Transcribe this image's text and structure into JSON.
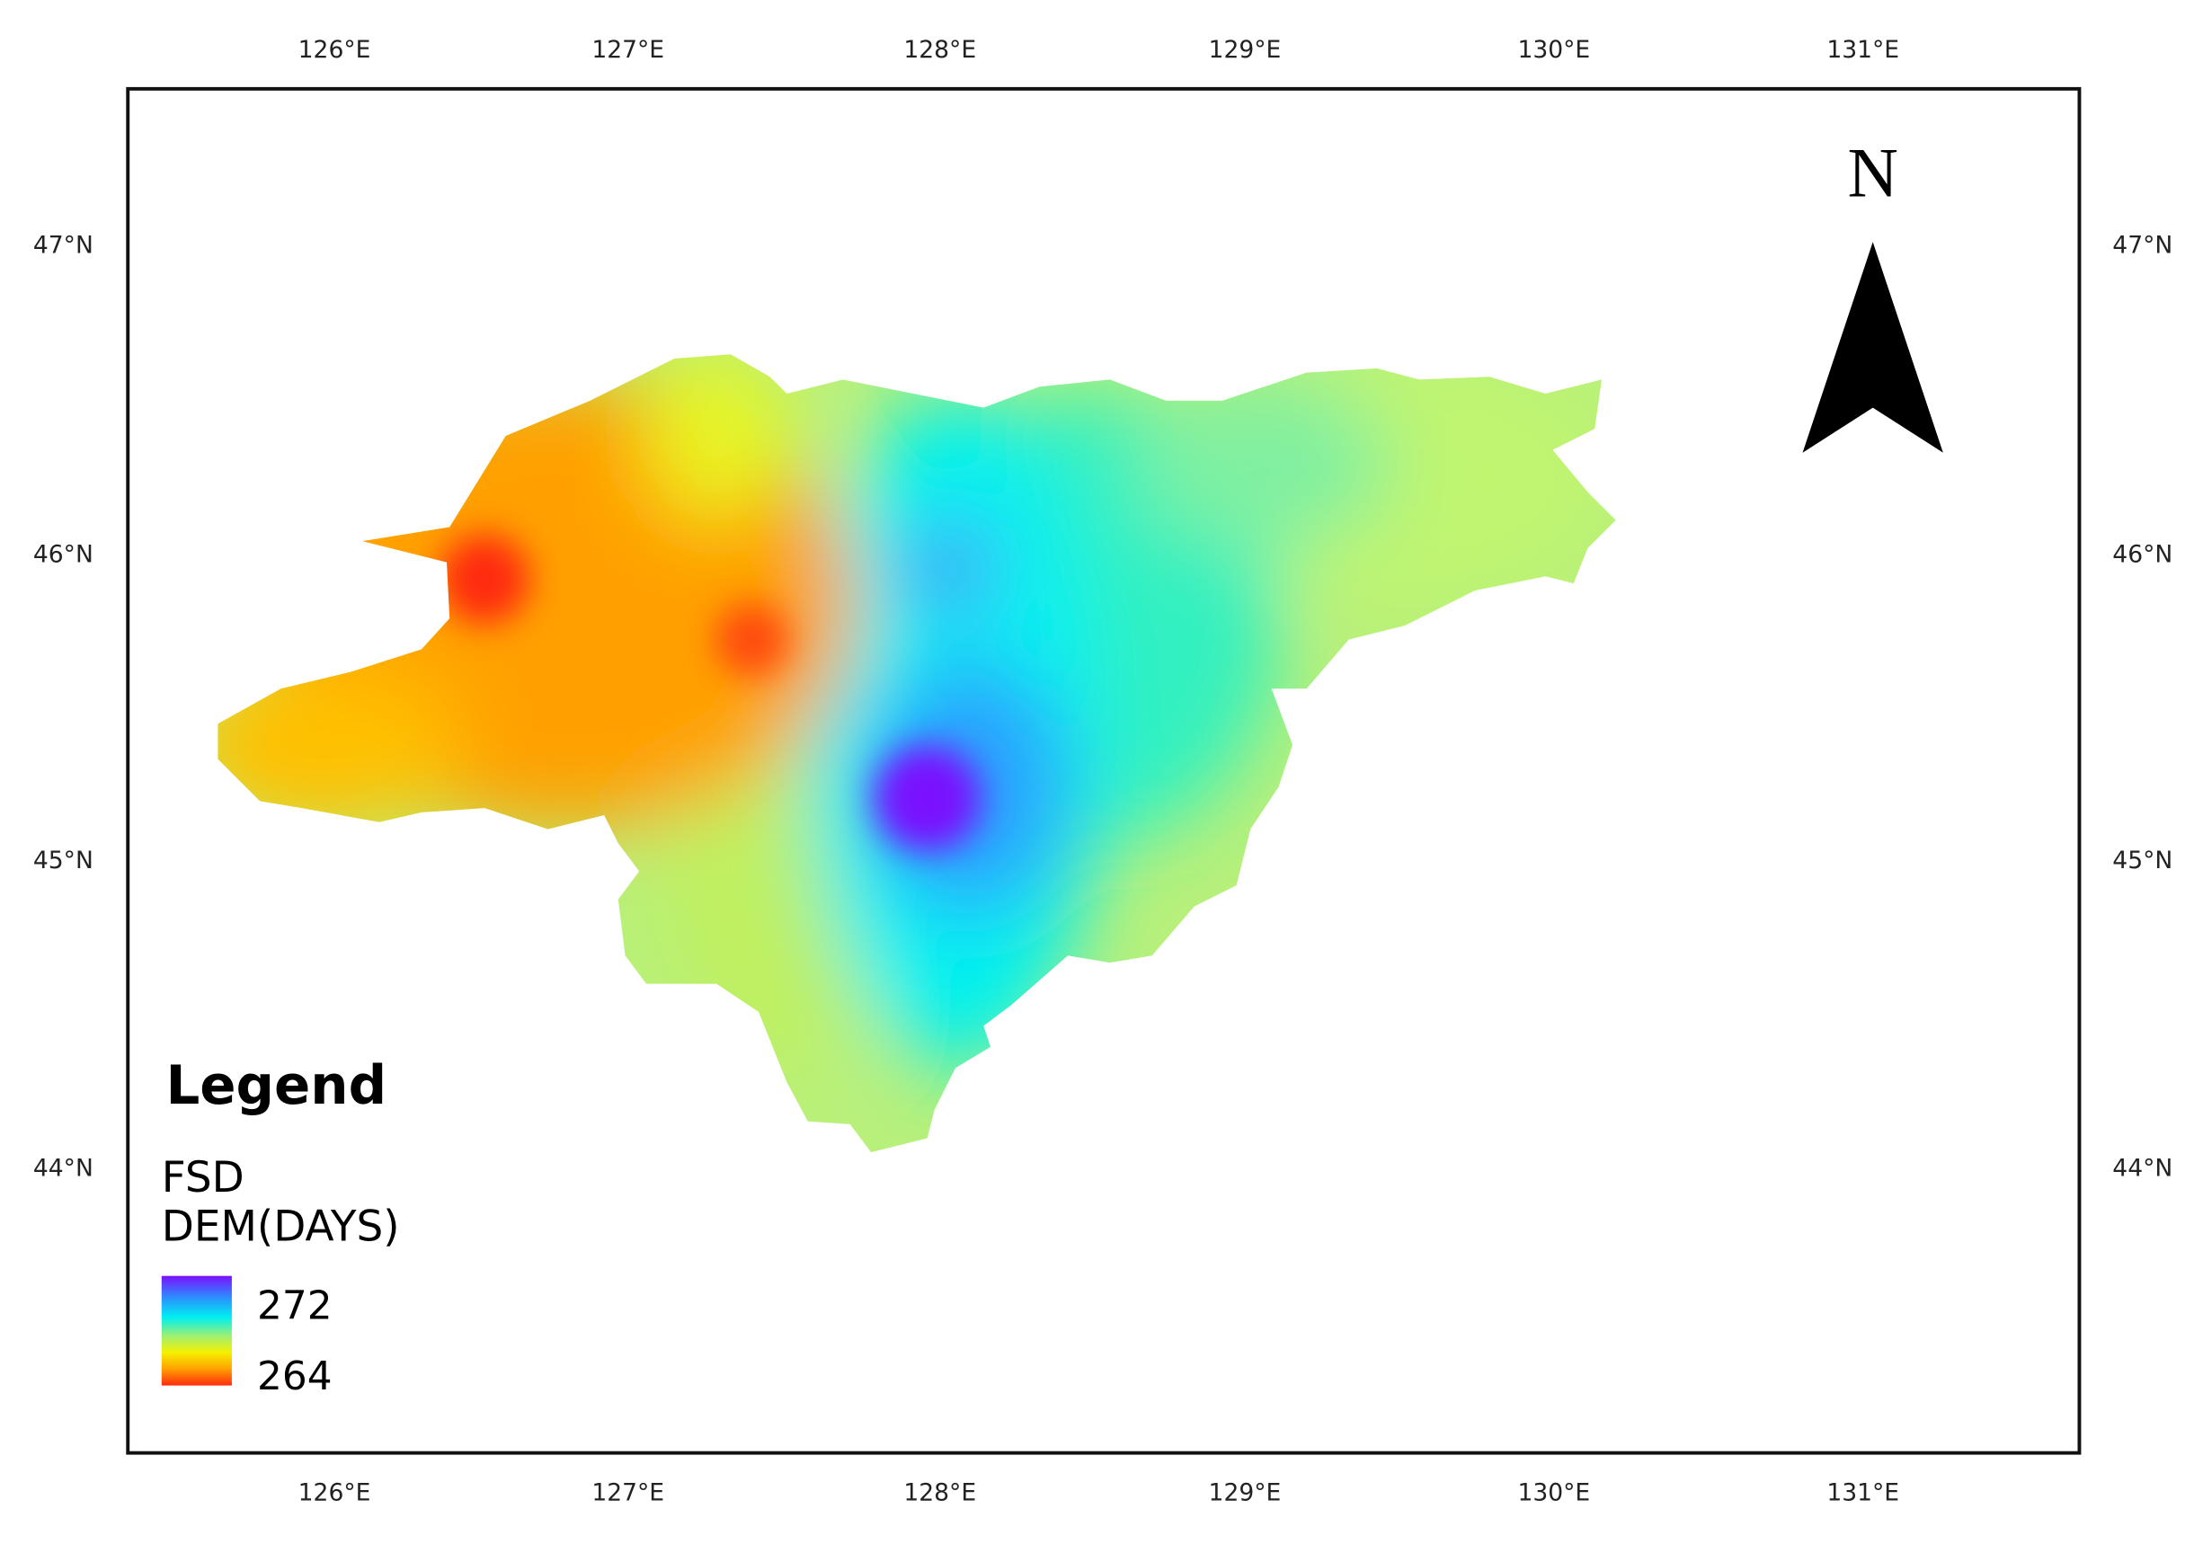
{
  "map": {
    "lon_ticks": [
      "126°E",
      "127°E",
      "128°E",
      "129°E",
      "130°E",
      "131°E"
    ],
    "lat_ticks": [
      "47°N",
      "46°N",
      "45°N",
      "44°N"
    ],
    "north": "N",
    "legend": {
      "title": "Legend",
      "layer": "FSD",
      "field": "DEM(DAYS)",
      "high": "272",
      "low": "264"
    }
  }
}
